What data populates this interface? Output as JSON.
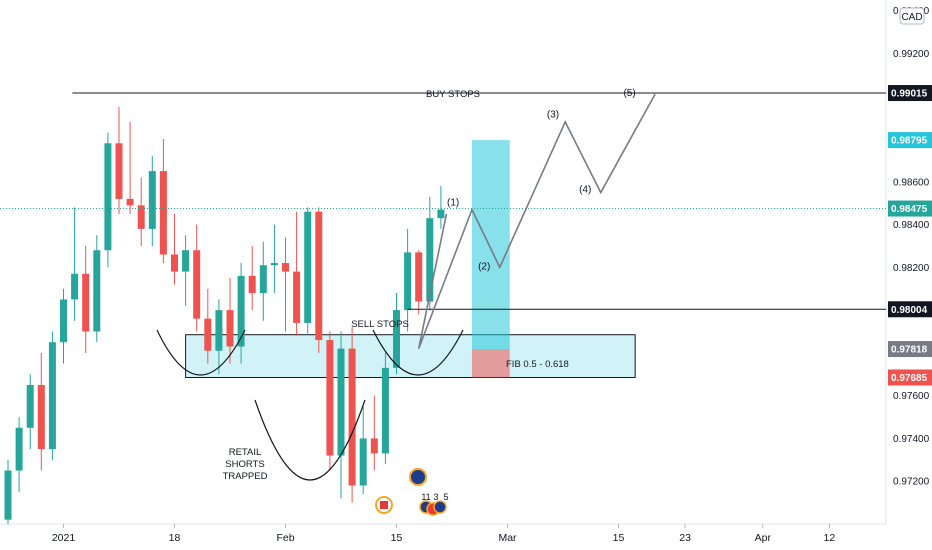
{
  "currency_badge": "CAD",
  "chart_data": {
    "type": "candlestick",
    "symbol_currency": "CAD",
    "ylim": [
      0.97,
      0.9945
    ],
    "y_ticks": [
      0.972,
      0.974,
      0.976,
      0.98,
      0.982,
      0.984,
      0.986,
      0.992,
      0.994
    ],
    "x_ticks": [
      {
        "label": "2021",
        "i": 5
      },
      {
        "label": "18",
        "i": 15
      },
      {
        "label": "Feb",
        "i": 25
      },
      {
        "label": "15",
        "i": 35
      },
      {
        "label": "Mar",
        "i": 45
      },
      {
        "label": "15",
        "i": 55
      },
      {
        "label": "23",
        "i": 61
      },
      {
        "label": "Apr",
        "i": 68
      },
      {
        "label": "12",
        "i": 74
      }
    ],
    "x_range_bars": [
      -0.6,
      79.3
    ],
    "candles": [
      {
        "o": 0.9702,
        "h": 0.973,
        "l": 0.97,
        "c": 0.9725
      },
      {
        "o": 0.9725,
        "h": 0.975,
        "l": 0.9715,
        "c": 0.9745
      },
      {
        "o": 0.9745,
        "h": 0.977,
        "l": 0.9735,
        "c": 0.9765
      },
      {
        "o": 0.9765,
        "h": 0.978,
        "l": 0.9725,
        "c": 0.9735
      },
      {
        "o": 0.9735,
        "h": 0.979,
        "l": 0.973,
        "c": 0.9785
      },
      {
        "o": 0.9785,
        "h": 0.981,
        "l": 0.9775,
        "c": 0.9805
      },
      {
        "o": 0.9805,
        "h": 0.9848,
        "l": 0.9795,
        "c": 0.9817
      },
      {
        "o": 0.9817,
        "h": 0.983,
        "l": 0.978,
        "c": 0.979
      },
      {
        "o": 0.979,
        "h": 0.9835,
        "l": 0.9785,
        "c": 0.9828
      },
      {
        "o": 0.9828,
        "h": 0.9883,
        "l": 0.982,
        "c": 0.9878
      },
      {
        "o": 0.9878,
        "h": 0.9895,
        "l": 0.9845,
        "c": 0.9852
      },
      {
        "o": 0.9852,
        "h": 0.9888,
        "l": 0.9845,
        "c": 0.9849
      },
      {
        "o": 0.9849,
        "h": 0.9862,
        "l": 0.983,
        "c": 0.9838
      },
      {
        "o": 0.9838,
        "h": 0.9872,
        "l": 0.983,
        "c": 0.9865
      },
      {
        "o": 0.9865,
        "h": 0.988,
        "l": 0.9822,
        "c": 0.9826
      },
      {
        "o": 0.9826,
        "h": 0.9845,
        "l": 0.9812,
        "c": 0.9818
      },
      {
        "o": 0.9818,
        "h": 0.9835,
        "l": 0.9802,
        "c": 0.9828
      },
      {
        "o": 0.9828,
        "h": 0.984,
        "l": 0.979,
        "c": 0.9796
      },
      {
        "o": 0.9796,
        "h": 0.981,
        "l": 0.9775,
        "c": 0.9781
      },
      {
        "o": 0.9781,
        "h": 0.9805,
        "l": 0.977,
        "c": 0.98
      },
      {
        "o": 0.98,
        "h": 0.9815,
        "l": 0.9775,
        "c": 0.9783
      },
      {
        "o": 0.9783,
        "h": 0.9822,
        "l": 0.9775,
        "c": 0.9816
      },
      {
        "o": 0.9816,
        "h": 0.983,
        "l": 0.98,
        "c": 0.9808
      },
      {
        "o": 0.9808,
        "h": 0.9832,
        "l": 0.9795,
        "c": 0.9821
      },
      {
        "o": 0.9821,
        "h": 0.984,
        "l": 0.9808,
        "c": 0.9822
      },
      {
        "o": 0.9822,
        "h": 0.9834,
        "l": 0.979,
        "c": 0.9818
      },
      {
        "o": 0.9818,
        "h": 0.9846,
        "l": 0.9788,
        "c": 0.9794
      },
      {
        "o": 0.9794,
        "h": 0.9848,
        "l": 0.9789,
        "c": 0.9846
      },
      {
        "o": 0.9846,
        "h": 0.9848,
        "l": 0.978,
        "c": 0.9786
      },
      {
        "o": 0.9786,
        "h": 0.979,
        "l": 0.9725,
        "c": 0.9732
      },
      {
        "o": 0.9732,
        "h": 0.979,
        "l": 0.9712,
        "c": 0.9782
      },
      {
        "o": 0.9782,
        "h": 0.9792,
        "l": 0.971,
        "c": 0.9718
      },
      {
        "o": 0.9718,
        "h": 0.9755,
        "l": 0.9714,
        "c": 0.974
      },
      {
        "o": 0.974,
        "h": 0.976,
        "l": 0.9725,
        "c": 0.9733
      },
      {
        "o": 0.9733,
        "h": 0.978,
        "l": 0.9728,
        "c": 0.9773
      },
      {
        "o": 0.9773,
        "h": 0.9808,
        "l": 0.977,
        "c": 0.98
      },
      {
        "o": 0.98,
        "h": 0.9838,
        "l": 0.979,
        "c": 0.9827
      },
      {
        "o": 0.9827,
        "h": 0.9828,
        "l": 0.9798,
        "c": 0.9804
      },
      {
        "o": 0.9804,
        "h": 0.9853,
        "l": 0.98,
        "c": 0.9843
      },
      {
        "o": 0.9843,
        "h": 0.9858,
        "l": 0.9838,
        "c": 0.9847
      }
    ],
    "levels": [
      {
        "label": "0.99015",
        "value": 0.99015,
        "tag_color": "#131722",
        "line": "solid"
      },
      {
        "label": "0.98795",
        "value": 0.98795,
        "tag_color": "#26c6da"
      },
      {
        "label": "0.98475",
        "value": 0.98475,
        "tag_color": "#26a69a",
        "line": "dotted"
      },
      {
        "label": "0.98004",
        "value": 0.98004,
        "tag_color": "#131722",
        "line": "solid"
      },
      {
        "label": "0.97818",
        "value": 0.97818,
        "tag_color": "#787b86"
      },
      {
        "label": "0.97685",
        "value": 0.97685,
        "tag_color": "#ef5350"
      }
    ],
    "annotations": {
      "buy_stops": "BUY STOPS",
      "sell_stops": "SELL STOPS",
      "fib": "FIB 0.5 - 0.618",
      "retail_lines": [
        "RETAIL",
        "SHORTS",
        "TRAPPED"
      ]
    },
    "fib_zone": {
      "x_from": 16.0,
      "x_to": 56.5,
      "y_from": 0.97685,
      "y_to": 0.97885
    },
    "position_box": {
      "x_from": 41.8,
      "x_to": 45.2,
      "target": 0.98795,
      "entry": 0.97818,
      "stop": 0.97685
    },
    "wave_path": [
      {
        "x": 39.5,
        "y": 0.9845
      },
      {
        "x": 37.0,
        "y": 0.9782
      },
      {
        "x": 41.8,
        "y": 0.9847
      },
      {
        "x": 44.3,
        "y": 0.982
      },
      {
        "x": 50.2,
        "y": 0.9888
      },
      {
        "x": 53.4,
        "y": 0.9855
      },
      {
        "x": 58.3,
        "y": 0.9901
      }
    ],
    "wave_labels": [
      {
        "text": "(1)",
        "x": 40.1,
        "y": 0.9849
      },
      {
        "text": "(2)",
        "x": 42.9,
        "y": 0.9819
      },
      {
        "text": "(3)",
        "x": 49.1,
        "y": 0.989
      },
      {
        "text": "(4)",
        "x": 52.0,
        "y": 0.9855
      },
      {
        "text": "(5)",
        "x": 56.0,
        "y": 0.99
      }
    ],
    "event_counts": [
      "11",
      "3",
      "5"
    ]
  }
}
